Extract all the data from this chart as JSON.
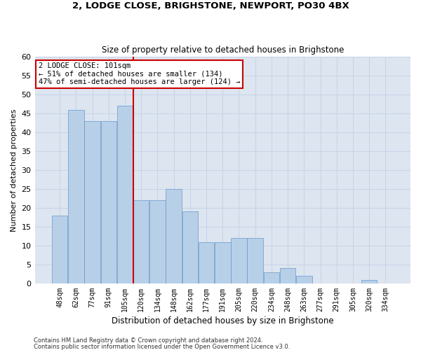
{
  "title1": "2, LODGE CLOSE, BRIGHSTONE, NEWPORT, PO30 4BX",
  "title2": "Size of property relative to detached houses in Brighstone",
  "xlabel": "Distribution of detached houses by size in Brighstone",
  "ylabel": "Number of detached properties",
  "categories": [
    "48sqm",
    "62sqm",
    "77sqm",
    "91sqm",
    "105sqm",
    "120sqm",
    "134sqm",
    "148sqm",
    "162sqm",
    "177sqm",
    "191sqm",
    "205sqm",
    "220sqm",
    "234sqm",
    "248sqm",
    "263sqm",
    "277sqm",
    "291sqm",
    "305sqm",
    "320sqm",
    "334sqm"
  ],
  "values": [
    18,
    46,
    43,
    43,
    47,
    22,
    22,
    25,
    19,
    11,
    11,
    12,
    12,
    3,
    4,
    2,
    0,
    0,
    0,
    1,
    0
  ],
  "bar_color": "#b8cfe8",
  "bar_edgecolor": "#6699cc",
  "vline_x": 4.5,
  "vline_color": "#cc0000",
  "annotation_text": "2 LODGE CLOSE: 101sqm\n← 51% of detached houses are smaller (134)\n47% of semi-detached houses are larger (124) →",
  "annotation_box_color": "#cc0000",
  "ylim": [
    0,
    60
  ],
  "yticks": [
    0,
    5,
    10,
    15,
    20,
    25,
    30,
    35,
    40,
    45,
    50,
    55,
    60
  ],
  "grid_color": "#c8d4e8",
  "bg_color": "#dde5f0",
  "footer1": "Contains HM Land Registry data © Crown copyright and database right 2024.",
  "footer2": "Contains public sector information licensed under the Open Government Licence v3.0."
}
